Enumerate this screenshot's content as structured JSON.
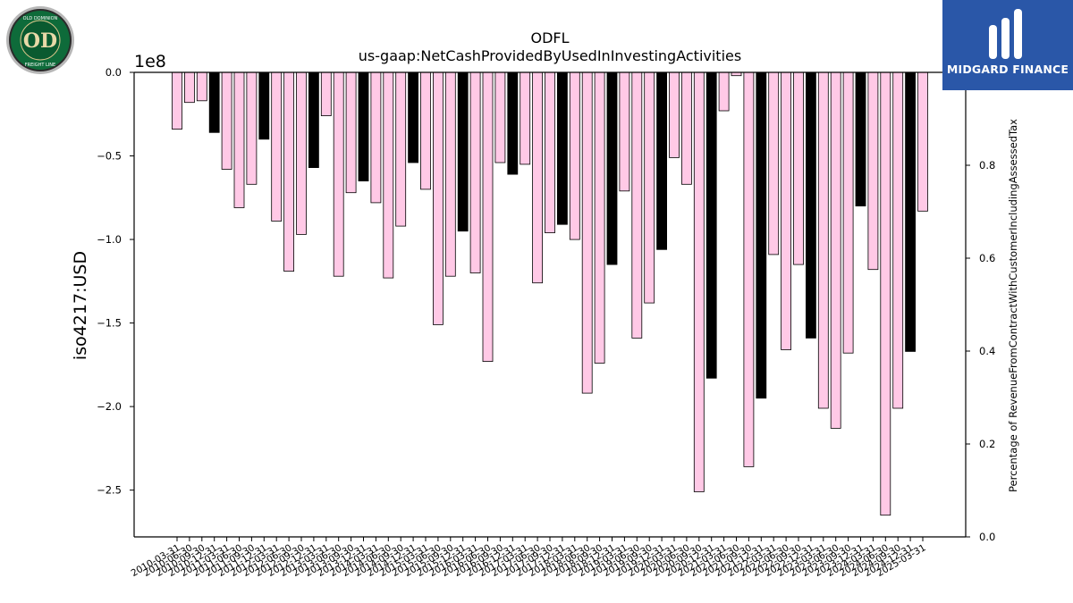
{
  "chart_data": {
    "type": "bar",
    "title": "ODFL",
    "subtitle": "us-gaap:NetCashProvidedByUsedInInvestingActivities",
    "ylabel": "iso4217:USD",
    "y2label": "Percentage of RevenueFromContractWithCustomerIncludingAssessedTax",
    "offset_label": "1e8",
    "ylim": [
      -2.78,
      0
    ],
    "y2lim": [
      0,
      1
    ],
    "yticks": [
      "0.0",
      "−0.5",
      "−1.0",
      "−1.5",
      "−2.0",
      "−2.5"
    ],
    "y2ticks": [
      "0.0",
      "0.2",
      "0.4",
      "0.6",
      "0.8"
    ],
    "colors": {
      "quarter": "#ffc9e6",
      "annual": "#000000"
    },
    "categories": [
      "2010-03-31",
      "2010-06-30",
      "2010-09-30",
      "2010-12-31",
      "2011-03-31",
      "2011-06-30",
      "2011-09-30",
      "2011-12-31",
      "2012-03-31",
      "2012-06-30",
      "2012-09-30",
      "2012-12-31",
      "2013-03-31",
      "2013-06-30",
      "2013-09-30",
      "2013-12-31",
      "2014-03-31",
      "2014-06-30",
      "2014-09-30",
      "2014-12-31",
      "2015-03-31",
      "2015-06-30",
      "2015-09-30",
      "2015-12-31",
      "2016-03-31",
      "2016-06-30",
      "2016-09-30",
      "2016-12-31",
      "2017-03-31",
      "2017-06-30",
      "2017-09-30",
      "2017-12-31",
      "2018-03-31",
      "2018-06-30",
      "2018-09-30",
      "2018-12-31",
      "2019-03-31",
      "2019-06-30",
      "2019-09-30",
      "2019-12-31",
      "2020-03-31",
      "2020-06-30",
      "2020-09-30",
      "2020-12-31",
      "2021-03-31",
      "2021-06-30",
      "2021-09-30",
      "2021-12-31",
      "2022-03-31",
      "2022-06-30",
      "2022-09-30",
      "2022-12-31",
      "2023-03-31",
      "2023-06-30",
      "2023-09-30",
      "2023-12-31",
      "2024-03-31",
      "2024-06-30",
      "2024-09-30",
      "2024-12-31",
      "2025-03-31"
    ],
    "values": [
      -0.34,
      -0.18,
      -0.17,
      -0.36,
      -0.58,
      -0.81,
      -0.67,
      -0.4,
      -0.89,
      -1.19,
      -0.97,
      -0.57,
      -0.26,
      -1.22,
      -0.72,
      -0.65,
      -0.78,
      -1.23,
      -0.92,
      -0.54,
      -0.7,
      -1.51,
      -1.22,
      -0.95,
      -1.2,
      -1.73,
      -0.54,
      -0.61,
      -0.55,
      -1.26,
      -0.96,
      -0.91,
      -1.0,
      -1.92,
      -1.74,
      -1.15,
      -0.71,
      -1.59,
      -1.38,
      -1.06,
      -0.51,
      -0.67,
      -2.51,
      -1.83,
      -0.23,
      -0.02,
      -2.36,
      -1.95,
      -1.09,
      -1.66,
      -1.15,
      -1.59,
      -2.01,
      -2.13,
      -1.68,
      -0.8,
      -1.18,
      -2.65,
      -2.01,
      -1.67,
      -0.83
    ],
    "annual": [
      false,
      false,
      false,
      true,
      false,
      false,
      false,
      true,
      false,
      false,
      false,
      true,
      false,
      false,
      false,
      true,
      false,
      false,
      false,
      true,
      false,
      false,
      false,
      true,
      false,
      false,
      false,
      true,
      false,
      false,
      false,
      true,
      false,
      false,
      false,
      true,
      false,
      false,
      false,
      true,
      false,
      false,
      false,
      true,
      false,
      false,
      false,
      true,
      false,
      false,
      false,
      true,
      false,
      false,
      false,
      true,
      false,
      false,
      false,
      true,
      false
    ]
  },
  "logos": {
    "left_text_top": "OLD DOMINION",
    "left_text_bottom": "FREIGHT LINE",
    "left_monogram": "OD",
    "right_brand": "MIDGARD FINANCE"
  }
}
